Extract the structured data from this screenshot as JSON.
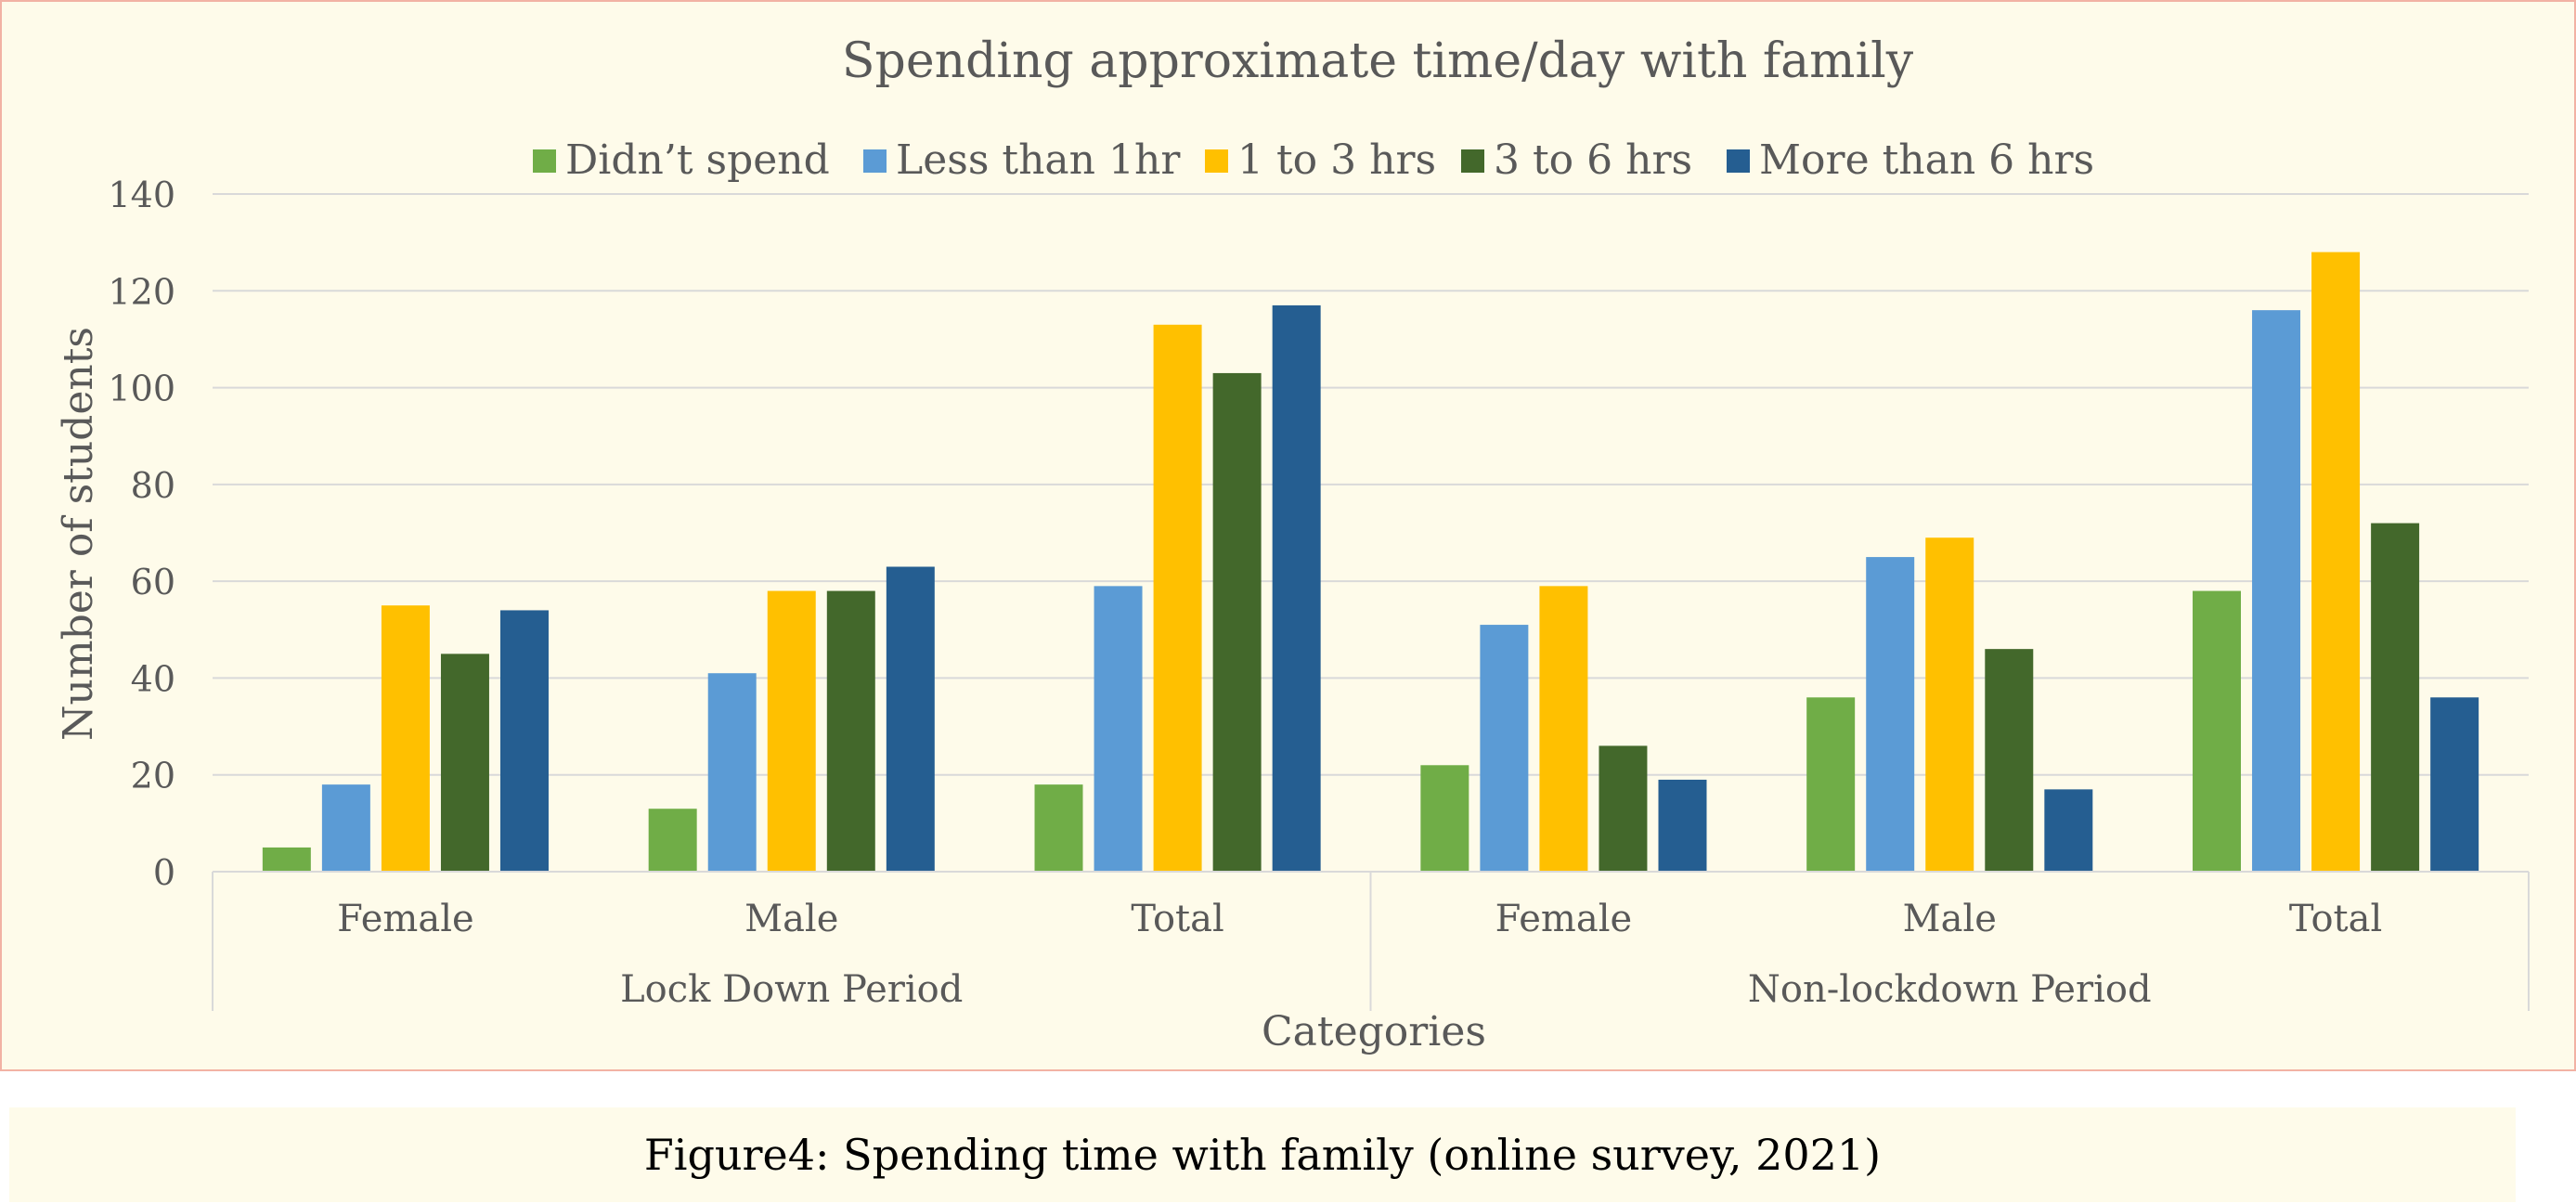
{
  "chart_data": {
    "type": "bar",
    "title": "Spending approximate time/day with family",
    "xlabel": "Categories",
    "ylabel": "Number of students",
    "ylim": [
      0,
      140
    ],
    "yticks": [
      0,
      20,
      40,
      60,
      80,
      100,
      120,
      140
    ],
    "grid": true,
    "legend_position": "top",
    "groups": [
      {
        "label": "Lock Down Period",
        "categories": [
          "Female",
          "Male",
          "Total"
        ]
      },
      {
        "label": "Non-lockdown Period",
        "categories": [
          "Female",
          "Male",
          "Total"
        ]
      }
    ],
    "categories": [
      "Female",
      "Male",
      "Total",
      "Female",
      "Male",
      "Total"
    ],
    "series": [
      {
        "name": "Didn’t spend",
        "color": "#70ad47",
        "values": [
          5,
          13,
          18,
          22,
          36,
          58
        ]
      },
      {
        "name": "Less than 1hr",
        "color": "#5b9bd5",
        "values": [
          18,
          41,
          59,
          51,
          65,
          116
        ]
      },
      {
        "name": "1 to 3 hrs",
        "color": "#ffc000",
        "values": [
          55,
          58,
          113,
          59,
          69,
          128
        ]
      },
      {
        "name": "3 to 6 hrs",
        "color": "#43682b",
        "values": [
          45,
          58,
          103,
          26,
          46,
          72
        ]
      },
      {
        "name": "More than 6 hrs",
        "color": "#255e91",
        "values": [
          54,
          63,
          117,
          19,
          17,
          36
        ]
      }
    ]
  },
  "caption": "Figure4: Spending time with family (online survey, 2021)"
}
